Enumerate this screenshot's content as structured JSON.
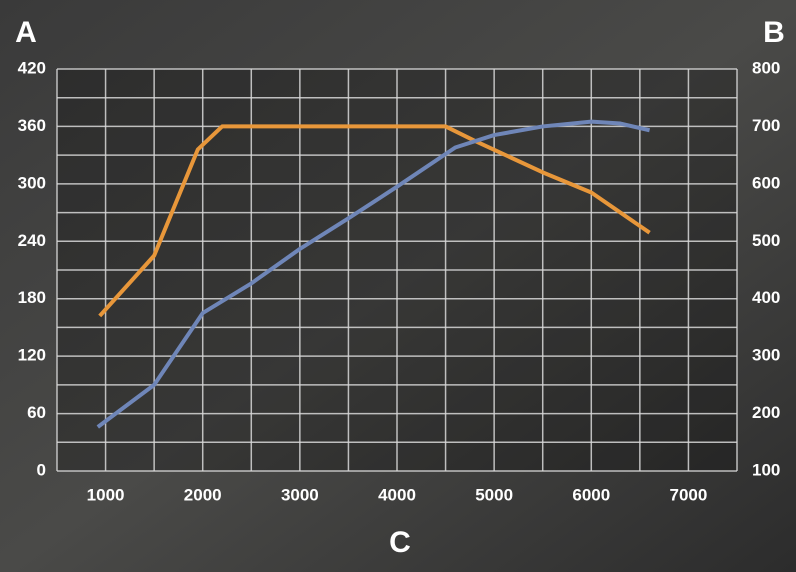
{
  "chart_data": {
    "type": "line",
    "y_axis_label": "A",
    "y2_axis_label": "B",
    "x_axis_label": "C",
    "xlim": [
      500,
      7500
    ],
    "xticks": [
      1000,
      2000,
      3000,
      4000,
      5000,
      6000,
      7000
    ],
    "xminorticks": [
      500,
      1500,
      2500,
      3500,
      4500,
      5500,
      6500,
      7500
    ],
    "ylim": [
      0,
      420
    ],
    "yticks": [
      0,
      60,
      120,
      180,
      240,
      300,
      360,
      420
    ],
    "yminorticks": [
      30,
      90,
      150,
      210,
      270,
      330,
      390
    ],
    "y2lim": [
      100,
      800
    ],
    "y2ticks": [
      100,
      200,
      300,
      400,
      500,
      600,
      700,
      800
    ],
    "grid": true,
    "series": [
      {
        "color": "#e8973a",
        "axis": "y2",
        "x": [
          940,
          1500,
          1950,
          2200,
          4500,
          4800,
          5500,
          6000,
          6600
        ],
        "values": [
          370,
          475,
          660,
          700,
          700,
          675,
          620,
          585,
          515
        ]
      },
      {
        "color": "#6f86b8",
        "axis": "y",
        "x": [
          920,
          1500,
          2000,
          2500,
          3000,
          3500,
          4000,
          4600,
          5000,
          5500,
          6000,
          6300,
          6600
        ],
        "values": [
          46,
          90,
          165,
          196,
          232,
          264,
          297,
          338,
          351,
          360,
          365,
          363,
          356
        ]
      }
    ]
  }
}
